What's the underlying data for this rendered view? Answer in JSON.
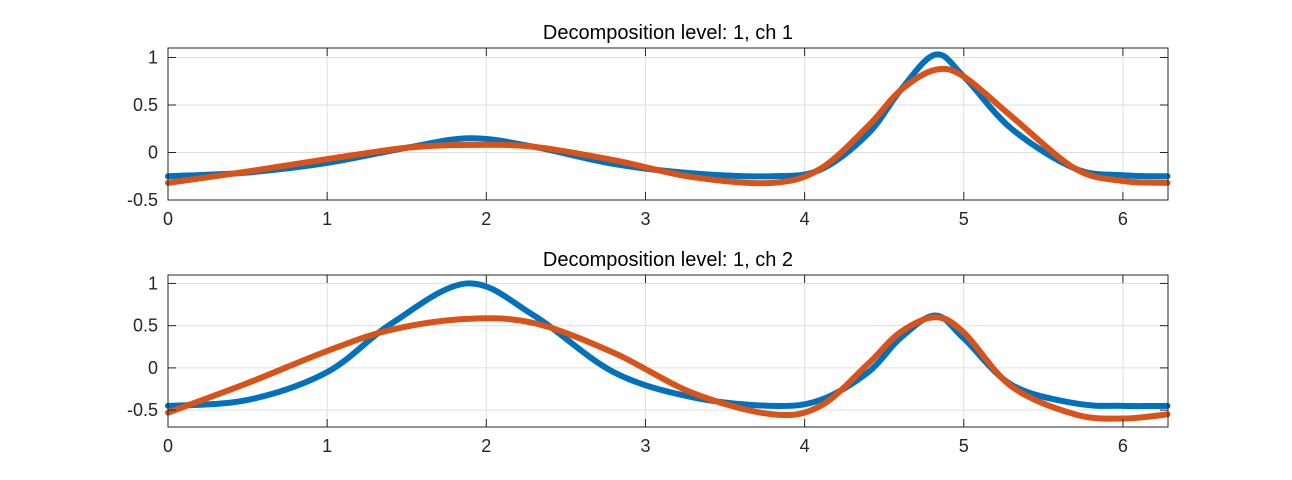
{
  "chart_data": [
    {
      "type": "line",
      "title": "Decomposition level: 1, ch 1",
      "xlabel": "",
      "ylabel": "",
      "xlim": [
        0,
        6.2832
      ],
      "ylim": [
        -0.5,
        1.1
      ],
      "xticks": [
        0,
        1,
        2,
        3,
        4,
        5,
        6
      ],
      "xtick_labels": [
        "0",
        "1",
        "2",
        "3",
        "4",
        "5",
        "6"
      ],
      "yticks": [
        -0.5,
        0,
        0.5,
        1
      ],
      "ytick_labels": [
        "-0.5",
        "0",
        "0.5",
        "1"
      ],
      "grid": true,
      "x": [
        0,
        0.5,
        1,
        1.5,
        1.9,
        2.3,
        2.8,
        3.3,
        3.8,
        4.1,
        4.4,
        4.6,
        4.82,
        5.0,
        5.3,
        5.7,
        6.0,
        6.28
      ],
      "series": [
        {
          "color": "#0072BD",
          "values": [
            -0.25,
            -0.21,
            -0.11,
            0.05,
            0.15,
            0.06,
            -0.12,
            -0.22,
            -0.25,
            -0.18,
            0.2,
            0.65,
            1.03,
            0.8,
            0.25,
            -0.17,
            -0.24,
            -0.25
          ]
        },
        {
          "color": "#D95319",
          "values": [
            -0.32,
            -0.2,
            -0.07,
            0.05,
            0.08,
            0.06,
            -0.08,
            -0.26,
            -0.32,
            -0.17,
            0.28,
            0.65,
            0.87,
            0.8,
            0.38,
            -0.17,
            -0.3,
            -0.32
          ]
        }
      ]
    },
    {
      "type": "line",
      "title": "Decomposition level: 1, ch 2",
      "xlabel": "",
      "ylabel": "",
      "xlim": [
        0,
        6.2832
      ],
      "ylim": [
        -0.7,
        1.1
      ],
      "xticks": [
        0,
        1,
        2,
        3,
        4,
        5,
        6
      ],
      "xtick_labels": [
        "0",
        "1",
        "2",
        "3",
        "4",
        "5",
        "6"
      ],
      "yticks": [
        -0.5,
        0,
        0.5,
        1
      ],
      "ytick_labels": [
        "-0.5",
        "0",
        "0.5",
        "1"
      ],
      "grid": true,
      "x": [
        0,
        0.5,
        1,
        1.4,
        1.88,
        2.3,
        2.8,
        3.3,
        3.8,
        4.1,
        4.4,
        4.6,
        4.82,
        5.0,
        5.3,
        5.7,
        6.0,
        6.28
      ],
      "series": [
        {
          "color": "#0072BD",
          "values": [
            -0.45,
            -0.38,
            -0.05,
            0.52,
            1.0,
            0.62,
            -0.05,
            -0.35,
            -0.45,
            -0.38,
            -0.05,
            0.35,
            0.62,
            0.35,
            -0.2,
            -0.42,
            -0.45,
            -0.45
          ]
        },
        {
          "color": "#D95319",
          "values": [
            -0.53,
            -0.18,
            0.2,
            0.45,
            0.58,
            0.53,
            0.18,
            -0.3,
            -0.55,
            -0.45,
            0.05,
            0.42,
            0.6,
            0.42,
            -0.22,
            -0.55,
            -0.6,
            -0.55
          ]
        }
      ]
    }
  ]
}
